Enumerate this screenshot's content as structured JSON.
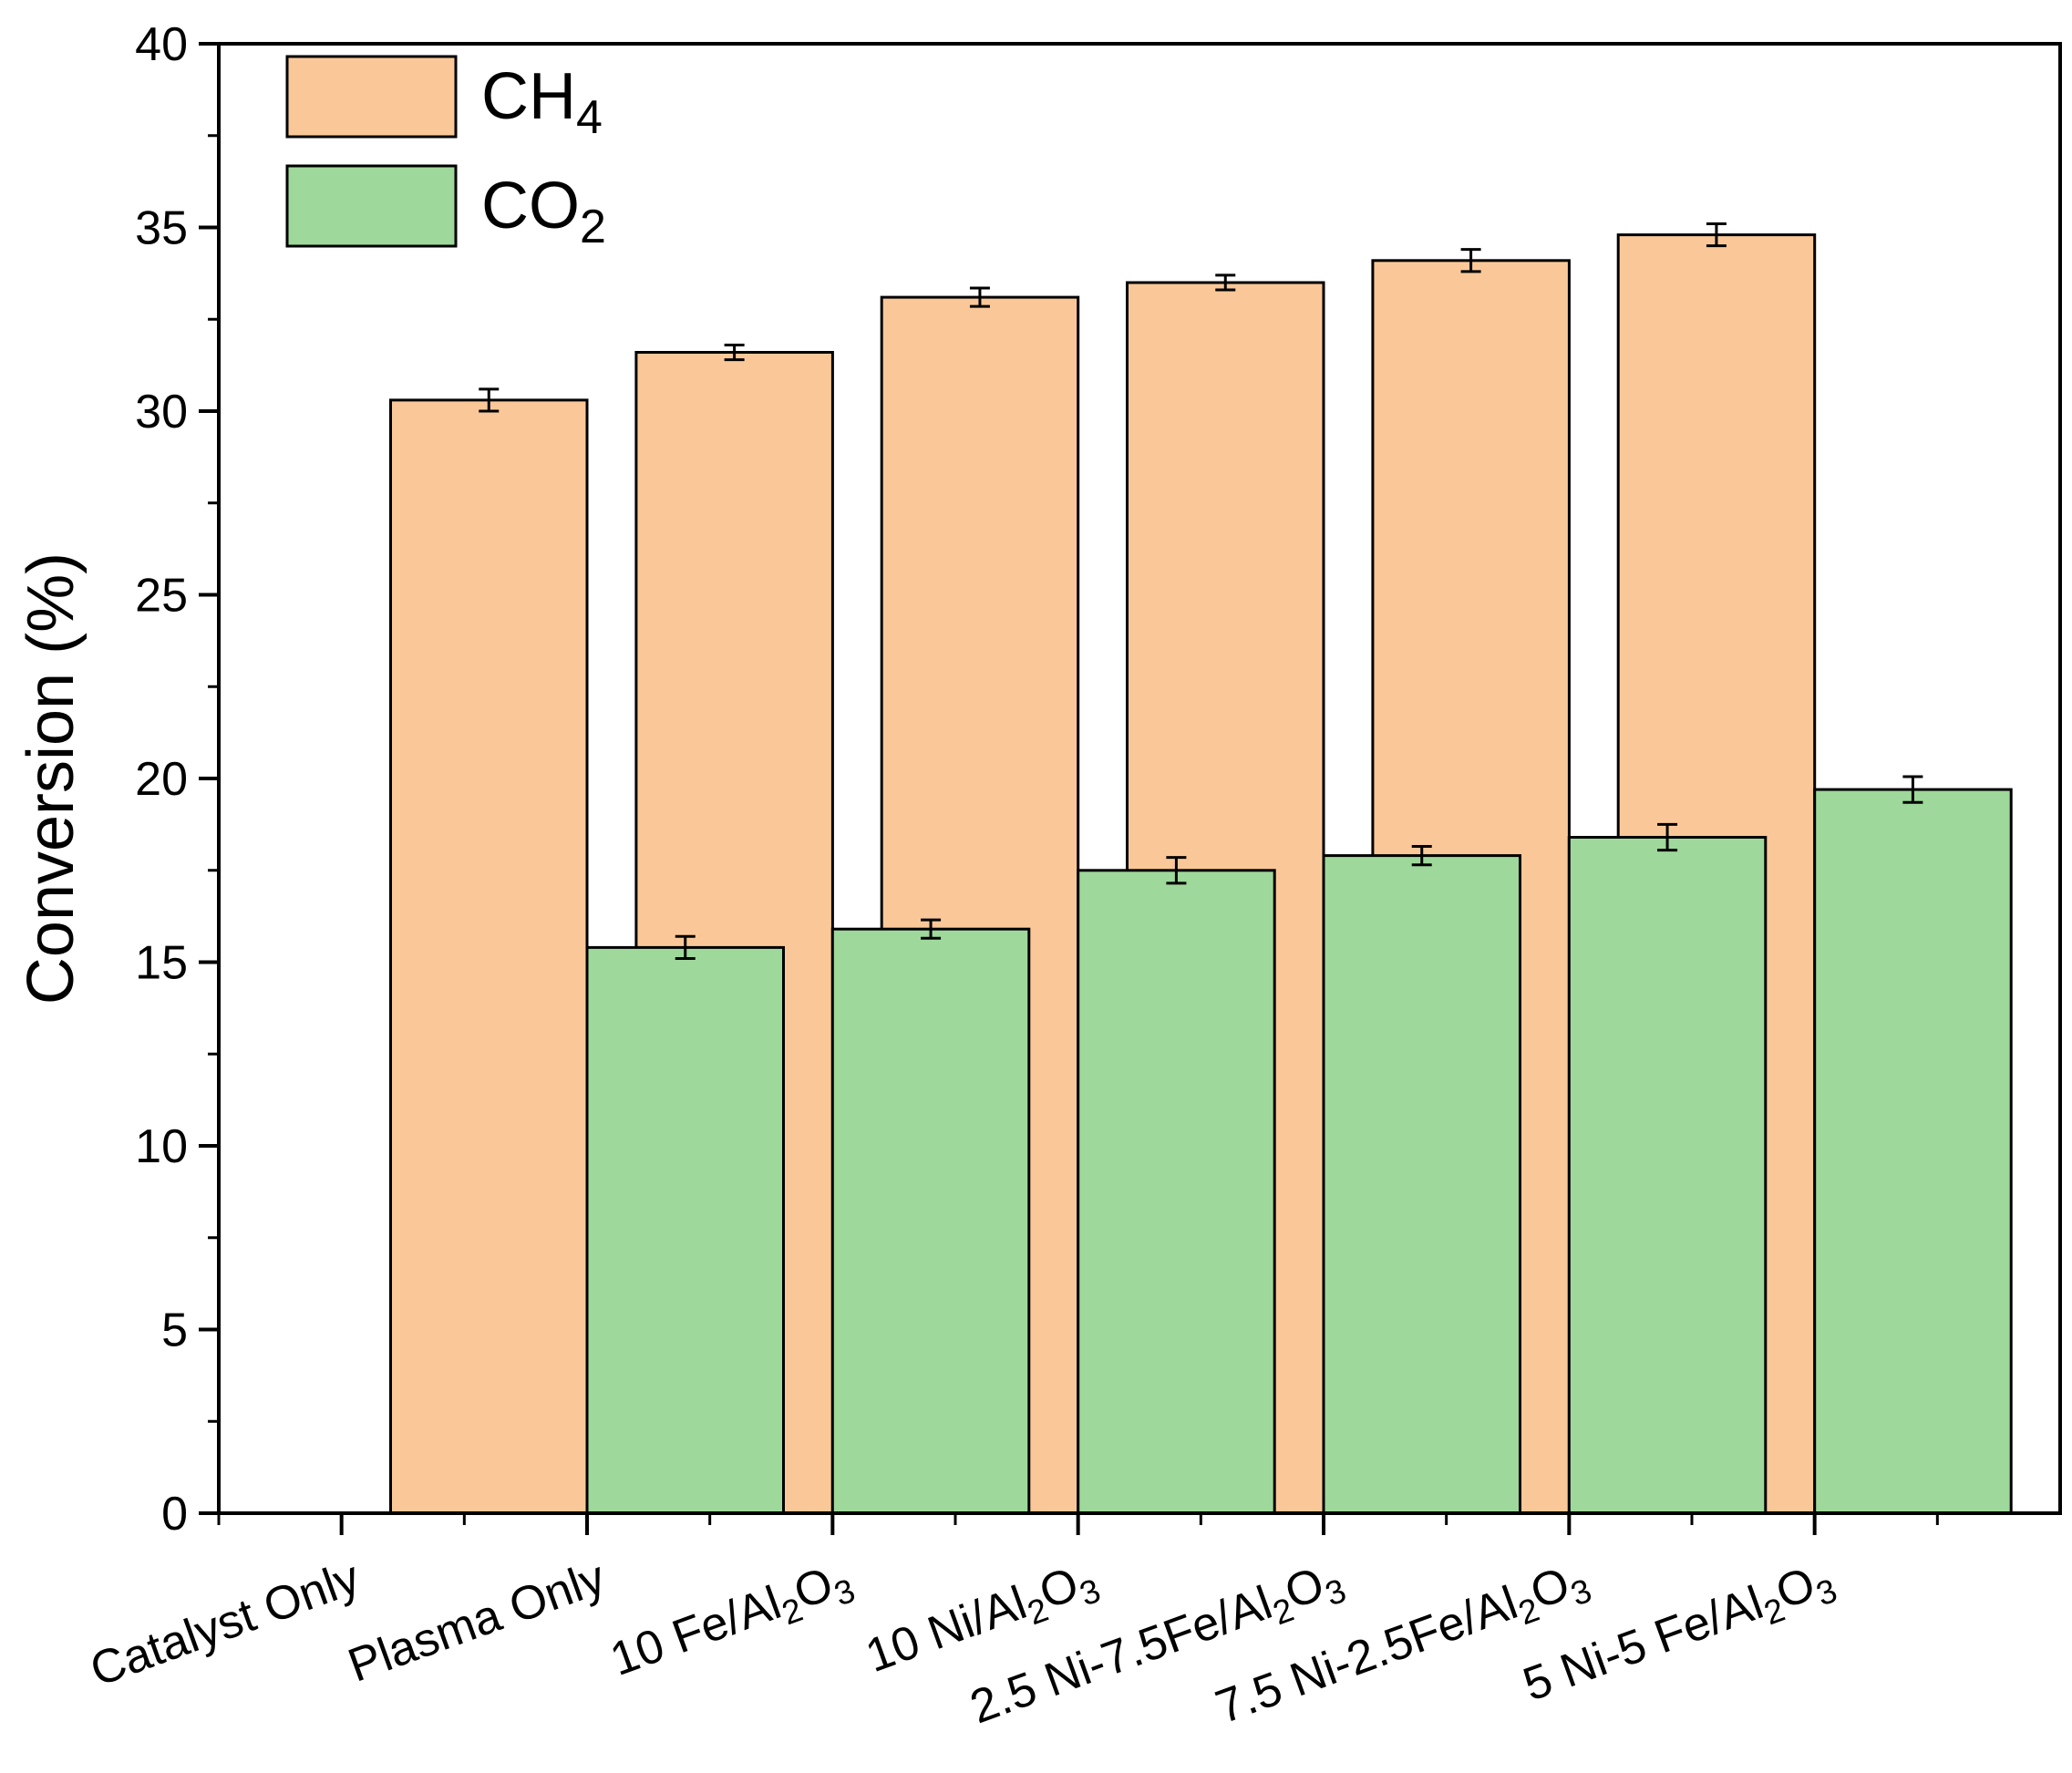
{
  "chart_data": {
    "type": "bar",
    "title": "",
    "xlabel": "",
    "ylabel": "Conversion (%)",
    "ylim": [
      0,
      40
    ],
    "yticks": [
      0,
      5,
      10,
      15,
      20,
      25,
      30,
      35,
      40
    ],
    "grid": false,
    "legend_position": "top-left",
    "categories": [
      {
        "parts": [
          {
            "t": "Catalyst Only",
            "sub": false
          }
        ]
      },
      {
        "parts": [
          {
            "t": "Plasma Only",
            "sub": false
          }
        ]
      },
      {
        "parts": [
          {
            "t": "10 Fe/Al",
            "sub": false
          },
          {
            "t": "2",
            "sub": true
          },
          {
            "t": "O",
            "sub": false
          },
          {
            "t": "3",
            "sub": true
          }
        ]
      },
      {
        "parts": [
          {
            "t": "10 Ni/Al",
            "sub": false
          },
          {
            "t": "2",
            "sub": true
          },
          {
            "t": "O",
            "sub": false
          },
          {
            "t": "3",
            "sub": true
          }
        ]
      },
      {
        "parts": [
          {
            "t": "2.5 Ni-7.5Fe/Al",
            "sub": false
          },
          {
            "t": "2",
            "sub": true
          },
          {
            "t": "O",
            "sub": false
          },
          {
            "t": "3",
            "sub": true
          }
        ]
      },
      {
        "parts": [
          {
            "t": "7.5 Ni-2.5Fe/Al",
            "sub": false
          },
          {
            "t": "2",
            "sub": true
          },
          {
            "t": "O",
            "sub": false
          },
          {
            "t": "3",
            "sub": true
          }
        ]
      },
      {
        "parts": [
          {
            "t": "5 Ni-5 Fe/Al",
            "sub": false
          },
          {
            "t": "2",
            "sub": true
          },
          {
            "t": "O",
            "sub": false
          },
          {
            "t": "3",
            "sub": true
          }
        ]
      }
    ],
    "series": [
      {
        "name": "CH4",
        "label_parts": [
          {
            "t": "CH",
            "sub": false
          },
          {
            "t": "4",
            "sub": true
          }
        ],
        "color": "#FAC898",
        "values": [
          0,
          30.3,
          31.6,
          33.1,
          33.5,
          34.1,
          34.8
        ],
        "errors": [
          0,
          0.3,
          0.2,
          0.25,
          0.2,
          0.3,
          0.3
        ]
      },
      {
        "name": "CO2",
        "label_parts": [
          {
            "t": "CO",
            "sub": false
          },
          {
            "t": "2",
            "sub": true
          }
        ],
        "color": "#9ED89A",
        "values": [
          0,
          15.4,
          15.9,
          17.5,
          17.9,
          18.4,
          19.7
        ],
        "errors": [
          0,
          0.3,
          0.25,
          0.35,
          0.25,
          0.35,
          0.35
        ]
      }
    ]
  }
}
